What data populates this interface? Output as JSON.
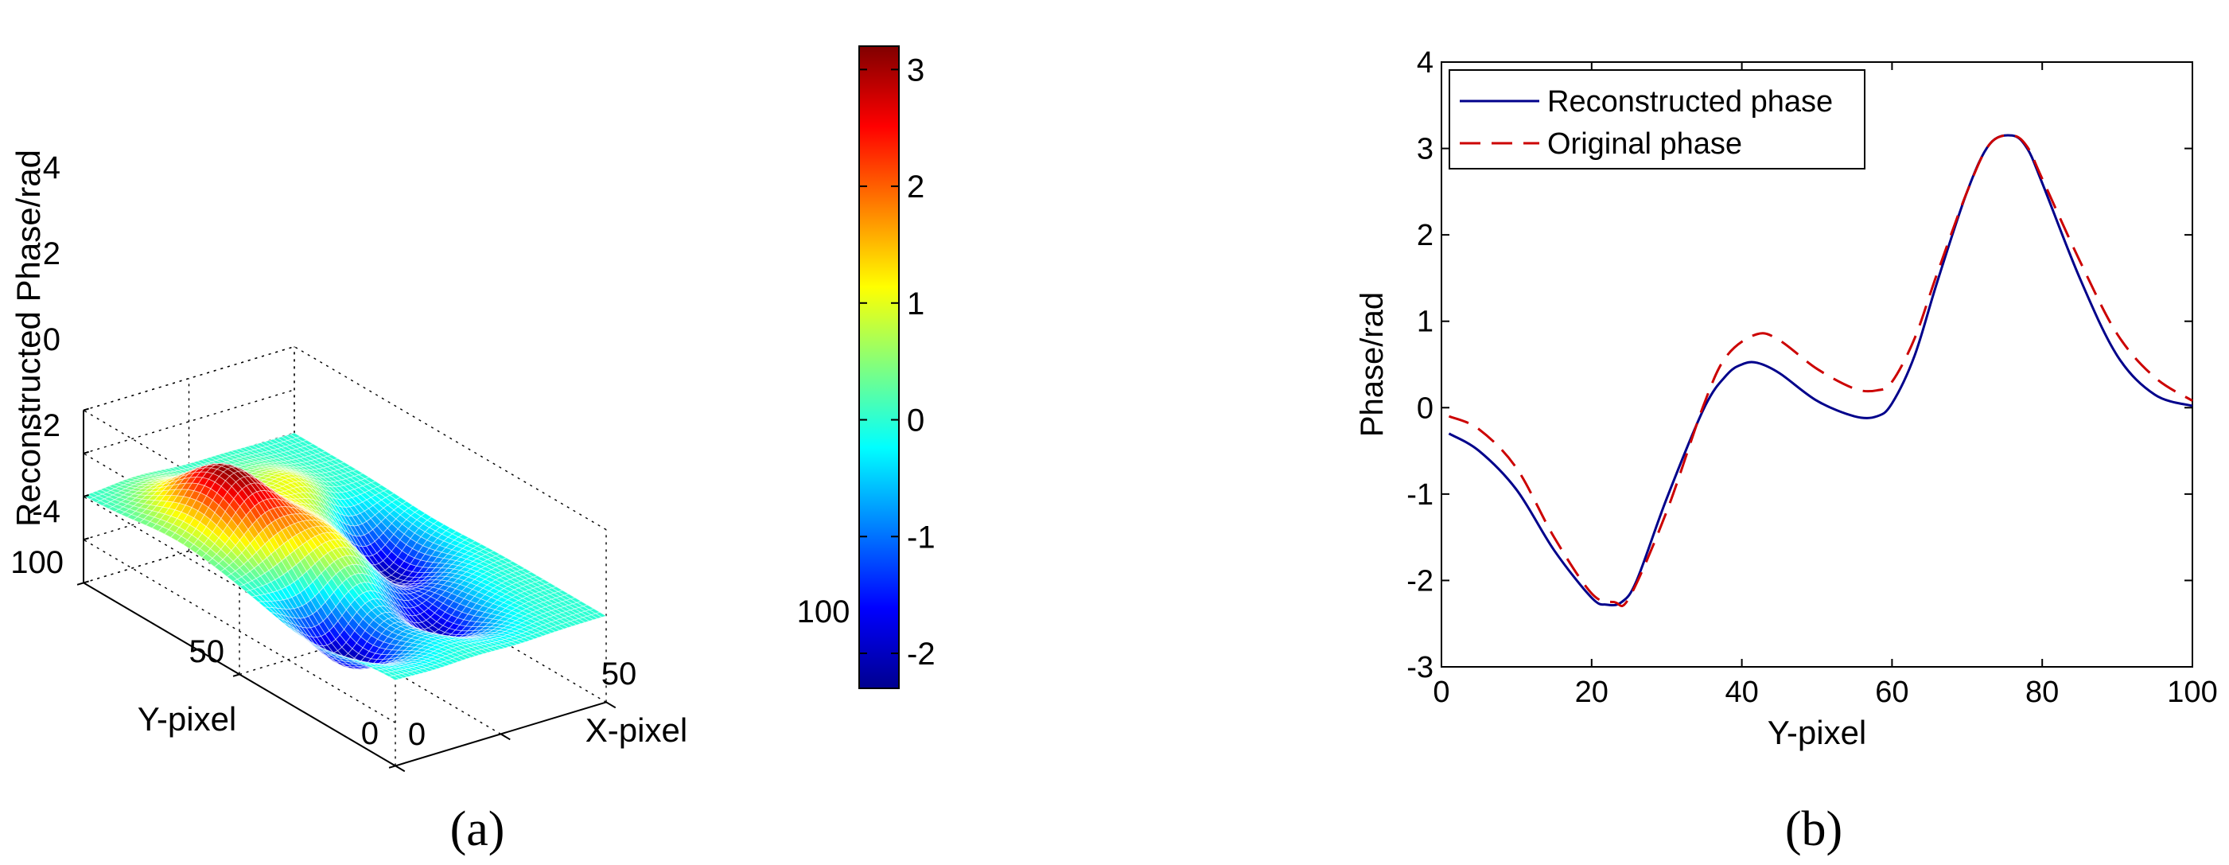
{
  "chart_data": [
    {
      "panel": "(a)",
      "type": "surface3d",
      "zlabel": "Reconstructed Phase/rad",
      "xlabel": "X-pixel",
      "ylabel": "Y-pixel",
      "z_ticks": [
        "-4",
        "-2",
        "0",
        "2",
        "4"
      ],
      "x_ticks": [
        "0",
        "50",
        "100"
      ],
      "y_ticks": [
        "0",
        "50",
        "100"
      ],
      "zlim": [
        -4,
        4
      ],
      "xlim": [
        0,
        100
      ],
      "ylim": [
        0,
        100
      ],
      "colorbar": {
        "ticks": [
          "-2",
          "-1",
          "0",
          "1",
          "2",
          "3"
        ],
        "range": [
          -2.3,
          3.2
        ],
        "colormap": "jet"
      },
      "features": [
        {
          "kind": "peak",
          "x": 25,
          "y": 70,
          "z": 3.1
        },
        {
          "kind": "trough",
          "x": 18,
          "y": 28,
          "z": -2.2
        },
        {
          "kind": "peak",
          "x": 45,
          "y": 50,
          "z": 1.1
        },
        {
          "kind": "trough",
          "x": 58,
          "y": 28,
          "z": -2.0
        },
        {
          "kind": "peak",
          "x": 65,
          "y": 72,
          "z": 1.3
        },
        {
          "kind": "trough",
          "x": 75,
          "y": 55,
          "z": -2.3
        }
      ],
      "grid": true
    },
    {
      "panel": "(b)",
      "type": "line",
      "xlabel": "Y-pixel",
      "ylabel": "Phase/rad",
      "xlim": [
        0,
        100
      ],
      "ylim": [
        -3,
        4
      ],
      "x_ticks": [
        "0",
        "20",
        "40",
        "60",
        "80",
        "100"
      ],
      "y_ticks": [
        "-3",
        "-2",
        "-1",
        "0",
        "1",
        "2",
        "3",
        "4"
      ],
      "legend": "top-left",
      "grid": false,
      "series": [
        {
          "name": "Reconstructed phase",
          "color": "#00008b",
          "style": "solid",
          "x": [
            1,
            5,
            10,
            15,
            20,
            22,
            24,
            26,
            30,
            35,
            38,
            40,
            42,
            45,
            50,
            55,
            58,
            60,
            63,
            66,
            70,
            73,
            76,
            78,
            80,
            85,
            90,
            95,
            100
          ],
          "y": [
            -0.3,
            -0.5,
            -0.95,
            -1.65,
            -2.2,
            -2.28,
            -2.25,
            -2.0,
            -1.05,
            0.0,
            0.38,
            0.5,
            0.52,
            0.4,
            0.08,
            -0.1,
            -0.1,
            0.05,
            0.6,
            1.45,
            2.5,
            3.05,
            3.15,
            3.0,
            2.6,
            1.5,
            0.6,
            0.15,
            0.02
          ]
        },
        {
          "name": "Original phase",
          "color": "#cc0000",
          "style": "dash",
          "x": [
            1,
            5,
            10,
            15,
            20,
            23,
            25,
            30,
            35,
            38,
            42,
            45,
            50,
            55,
            58,
            60,
            63,
            66,
            70,
            73,
            76,
            78,
            80,
            85,
            90,
            95,
            100
          ],
          "y": [
            -0.1,
            -0.25,
            -0.7,
            -1.5,
            -2.15,
            -2.25,
            -2.2,
            -1.2,
            0.05,
            0.6,
            0.85,
            0.78,
            0.45,
            0.22,
            0.2,
            0.3,
            0.8,
            1.55,
            2.5,
            3.05,
            3.15,
            3.02,
            2.65,
            1.7,
            0.85,
            0.35,
            0.08
          ]
        }
      ]
    }
  ],
  "captions": {
    "a": "(a)",
    "b": "(b)"
  },
  "colors": {
    "axis": "#000000",
    "grid": "#000000"
  }
}
